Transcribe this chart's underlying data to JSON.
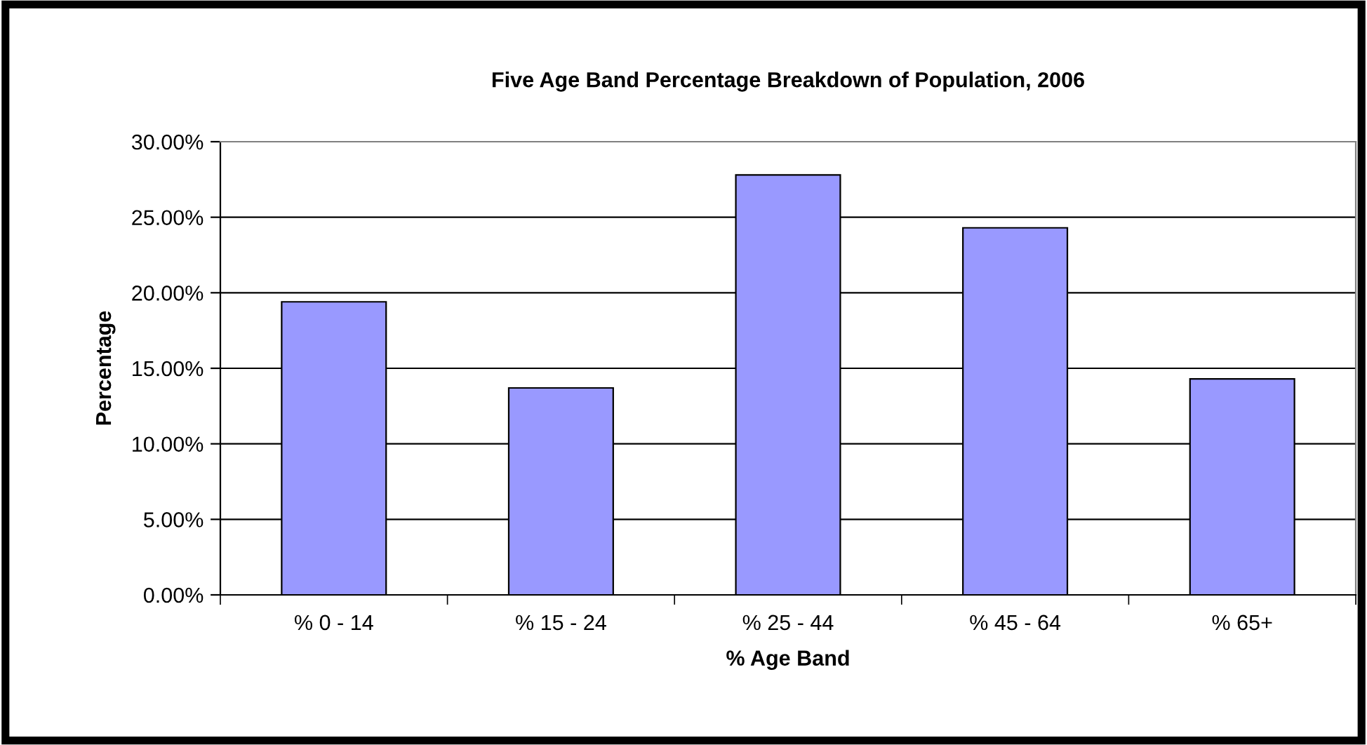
{
  "chart_data": {
    "type": "bar",
    "title": "Five Age Band Percentage Breakdown of Population, 2006",
    "xlabel": "% Age Band",
    "ylabel": "Percentage",
    "categories": [
      "% 0 - 14",
      "% 15 - 24",
      "% 25 - 44",
      "% 45 - 64",
      "% 65+"
    ],
    "values": [
      19.4,
      13.7,
      27.8,
      24.3,
      14.3
    ],
    "color": "#9999ff",
    "ylim": [
      0,
      30
    ],
    "yticks": [
      {
        "value": 0,
        "label": "0.00%"
      },
      {
        "value": 5,
        "label": "5.00%"
      },
      {
        "value": 10,
        "label": "10.00%"
      },
      {
        "value": 15,
        "label": "15.00%"
      },
      {
        "value": 20,
        "label": "20.00%"
      },
      {
        "value": 25,
        "label": "25.00%"
      },
      {
        "value": 30,
        "label": "30.00%"
      }
    ],
    "grid": "y",
    "legend": false
  }
}
